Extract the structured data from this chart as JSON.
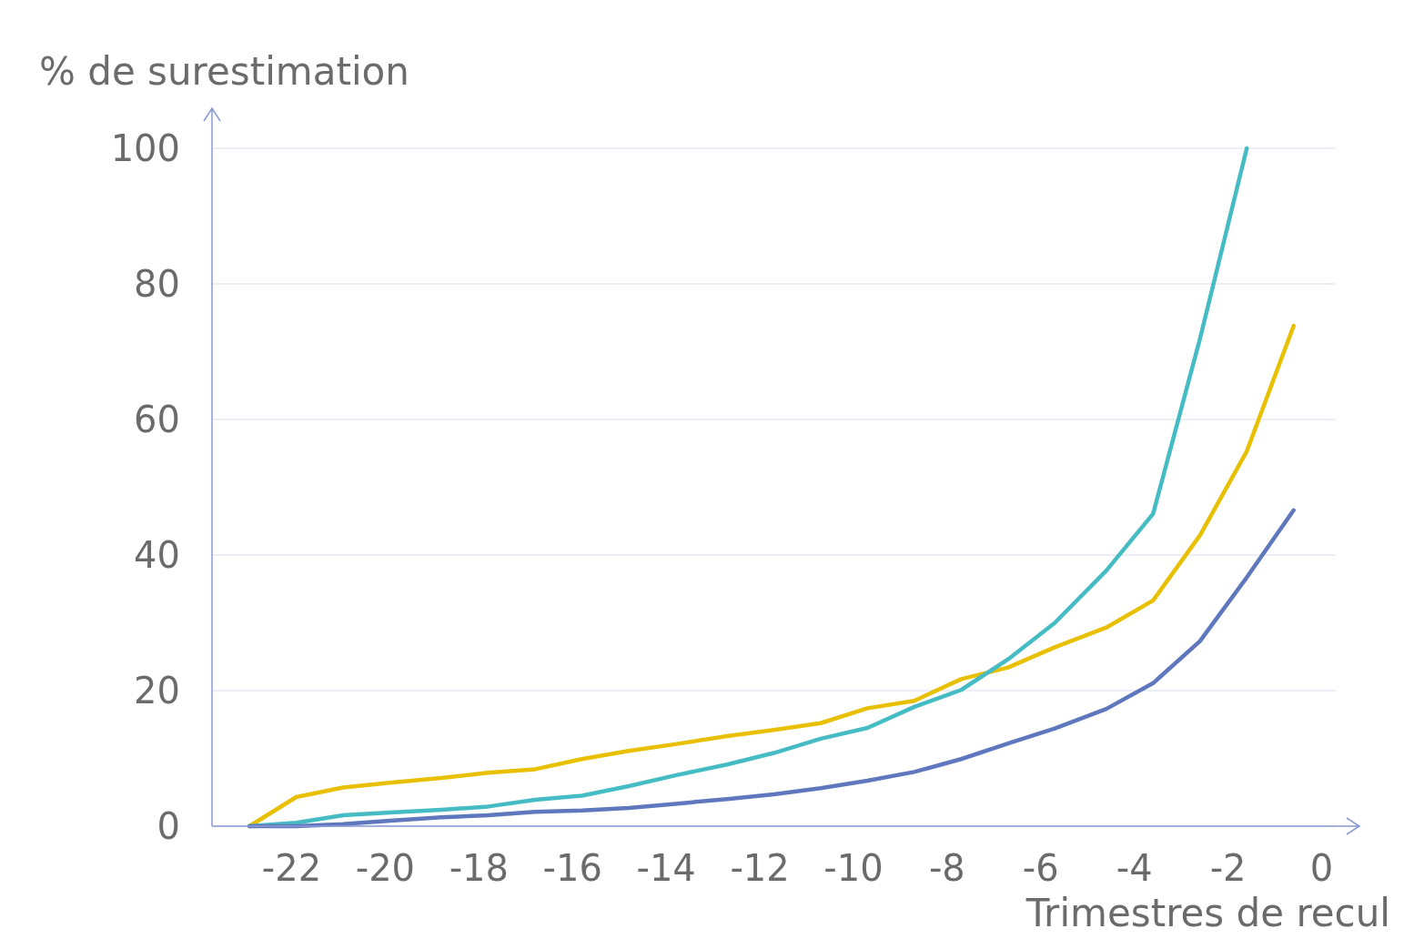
{
  "chart_data": {
    "type": "line",
    "ylabel": "% de surestimation",
    "xlabel": "Trimestres de recul",
    "xlim": [
      -23.7,
      0.3
    ],
    "xticks": [
      -22,
      -20,
      -18,
      -16,
      -14,
      -12,
      -10,
      -8,
      -6,
      -4,
      -2,
      0
    ],
    "ylim": [
      0,
      100
    ],
    "yticks": [
      0,
      20,
      40,
      60,
      80,
      100
    ],
    "grid": "y",
    "marker": "none",
    "line_style": "solid",
    "x": [
      -22.9,
      -21.9,
      -20.9,
      -19.9,
      -18.8,
      -17.8,
      -16.8,
      -15.8,
      -14.8,
      -13.8,
      -12.7,
      -11.7,
      -10.7,
      -9.7,
      -8.7,
      -7.7,
      -6.7,
      -5.7,
      -4.6,
      -3.6,
      -2.6,
      -1.6,
      -0.6
    ],
    "series": [
      {
        "color": "#e8c000",
        "values": [
          0,
          4.3,
          5.7,
          6.4,
          7.1,
          7.9,
          8.4,
          9.9,
          11.1,
          12.1,
          13.3,
          14.2,
          15.2,
          17.4,
          18.5,
          21.7,
          23.4,
          26.4,
          29.3,
          33.3,
          42.9,
          55.3,
          73.8
        ]
      },
      {
        "color": "#45bcc4",
        "values": [
          0,
          0.5,
          1.6,
          2.0,
          2.4,
          2.9,
          3.9,
          4.5,
          5.9,
          7.5,
          9.1,
          10.8,
          12.9,
          14.5,
          17.6,
          20.1,
          24.6,
          30.0,
          37.7,
          46.1,
          71.9,
          100,
          null
        ]
      },
      {
        "color": "#5f78bd",
        "values": [
          0,
          0,
          0.3,
          0.8,
          1.3,
          1.6,
          2.1,
          2.3,
          2.7,
          3.3,
          4.0,
          4.7,
          5.6,
          6.7,
          8.0,
          9.9,
          12.2,
          14.4,
          17.3,
          21.1,
          27.3,
          36.7,
          46.6
        ]
      }
    ]
  }
}
